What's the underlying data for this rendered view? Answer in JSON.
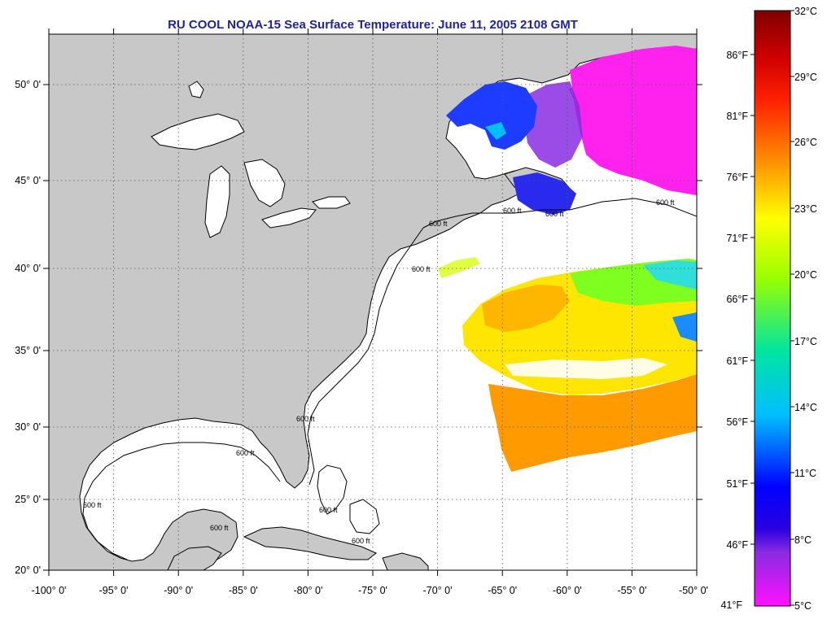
{
  "title": "RU COOL  NOAA-15  Sea Surface Temperature:  June 11, 2005 2108 GMT",
  "longitude_labels": [
    "-100° 0'",
    "-95° 0'",
    "-90° 0'",
    "-85° 0'",
    "-80° 0'",
    "-75° 0'",
    "-70° 0'",
    "-65° 0'",
    "-60° 0'",
    "-55° 0'",
    "-50° 0'"
  ],
  "latitude_labels": [
    "50° 0'",
    "45° 0'",
    "40° 0'",
    "35° 0'",
    "30° 0'",
    "25° 0'",
    "20° 0'"
  ],
  "contour_label": "600 ft",
  "colorbar": {
    "celsius_labels": [
      "32°C",
      "29°C",
      "26°C",
      "23°C",
      "20°C",
      "17°C",
      "14°C",
      "11°C",
      "8°C",
      "5°C"
    ],
    "fahrenheit_labels": [
      "86°F",
      "81°F",
      "76°F",
      "71°F",
      "66°F",
      "61°F",
      "56°F",
      "51°F",
      "46°F",
      "41°F"
    ]
  },
  "colors": {
    "land": "#c8c8c8",
    "ocean": "#ffffff",
    "title": "#1f1fa8",
    "grid": "#555555",
    "colorbar_stops": [
      "#7f0000",
      "#ff0000",
      "#ff8c00",
      "#ffff00",
      "#7fff00",
      "#00e5c0",
      "#00bfff",
      "#0000ff",
      "#8a2be2",
      "#ff00ff"
    ]
  }
}
